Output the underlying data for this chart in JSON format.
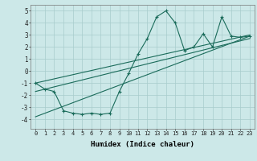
{
  "xlabel": "Humidex (Indice chaleur)",
  "x_values": [
    0,
    1,
    2,
    3,
    4,
    5,
    6,
    7,
    8,
    9,
    10,
    11,
    12,
    13,
    14,
    15,
    16,
    17,
    18,
    19,
    20,
    21,
    22,
    23
  ],
  "main_line": [
    -1.0,
    -1.5,
    -1.7,
    -3.3,
    -3.5,
    -3.6,
    -3.5,
    -3.6,
    -3.5,
    -1.7,
    -0.2,
    1.4,
    2.7,
    4.5,
    5.0,
    4.0,
    1.7,
    2.0,
    3.1,
    2.0,
    4.5,
    2.9,
    2.8,
    2.9
  ],
  "upper_line_ends": [
    -1.0,
    3.0
  ],
  "mid_line_ends": [
    -1.7,
    2.7
  ],
  "lower_line_ends": [
    -3.8,
    2.9
  ],
  "line_color": "#1a6b5a",
  "bg_color": "#cce8e8",
  "grid_color": "#a8cccc",
  "ylim": [
    -4.8,
    5.5
  ],
  "yticks": [
    -4,
    -3,
    -2,
    -1,
    0,
    1,
    2,
    3,
    4,
    5
  ],
  "xlim": [
    -0.5,
    23.5
  ]
}
